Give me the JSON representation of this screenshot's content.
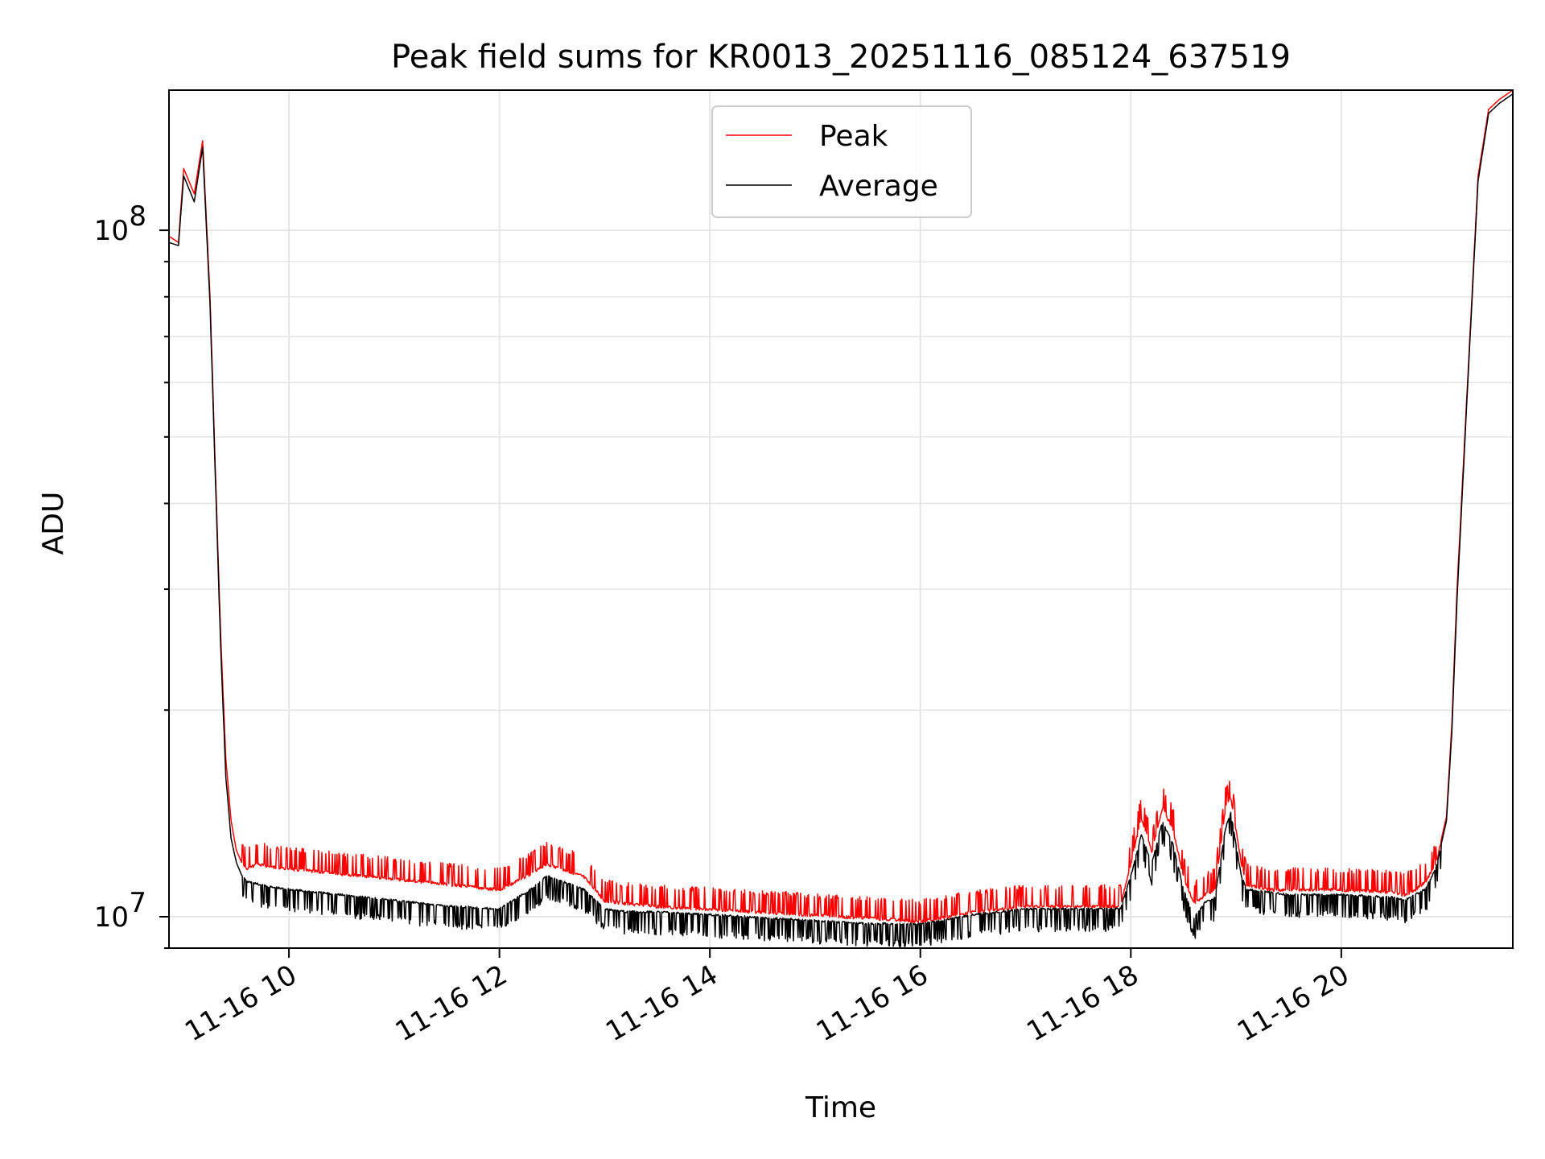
{
  "chart_data": {
    "type": "line",
    "title": "Peak field sums for KR0013_20251116_085124_637519",
    "xlabel": "Time",
    "ylabel": "ADU",
    "yscale": "log",
    "ylim": [
      9000000.0,
      160000000.0
    ],
    "xlim_hours": [
      8.86,
      21.63
    ],
    "grid": true,
    "legend_position": "top-center",
    "x_tick_hours": [
      10,
      12,
      14,
      16,
      18,
      20
    ],
    "x_tick_labels": [
      "11-16 10",
      "11-16 12",
      "11-16 14",
      "11-16 16",
      "11-16 18",
      "11-16 20"
    ],
    "y_major_ticks": [
      {
        "value": 10000000.0,
        "base": "10",
        "exp": "7"
      },
      {
        "value": 100000000.0,
        "base": "10",
        "exp": "8"
      }
    ],
    "series": [
      {
        "name": "Peak",
        "color": "#ff0000",
        "x_hours": [
          8.86,
          8.95,
          9.0,
          9.1,
          9.18,
          9.25,
          9.3,
          9.35,
          9.4,
          9.45,
          9.5,
          9.55,
          9.6,
          9.7,
          9.8,
          10.0,
          10.5,
          11.0,
          11.5,
          12.0,
          12.3,
          12.45,
          12.8,
          13.0,
          13.2,
          13.5,
          14.0,
          14.5,
          15.0,
          15.5,
          16.0,
          16.2,
          16.5,
          17.0,
          17.5,
          17.9,
          18.0,
          18.1,
          18.2,
          18.3,
          18.4,
          18.5,
          18.6,
          18.7,
          18.8,
          18.9,
          18.95,
          19.05,
          19.1,
          19.3,
          19.5,
          20.0,
          20.5,
          20.6,
          20.7,
          20.8,
          20.9,
          21.0,
          21.05,
          21.1,
          21.2,
          21.3,
          21.4,
          21.5,
          21.63
        ],
        "y_adu": [
          98000000.0,
          96000000.0,
          123000000.0,
          113000000.0,
          135000000.0,
          80000000.0,
          45000000.0,
          26000000.0,
          17000000.0,
          13800000.0,
          12500000.0,
          12000000.0,
          11800000.0,
          12000000.0,
          11900000.0,
          11800000.0,
          11600000.0,
          11400000.0,
          11200000.0,
          11000000.0,
          11600000.0,
          12000000.0,
          11500000.0,
          10600000.0,
          10500000.0,
          10400000.0,
          10300000.0,
          10200000.0,
          10100000.0,
          10000000.0,
          9900000.0,
          10000000.0,
          10200000.0,
          10400000.0,
          10400000.0,
          10400000.0,
          12000000.0,
          14000000.0,
          12500000.0,
          14500000.0,
          13500000.0,
          11500000.0,
          10500000.0,
          10800000.0,
          11000000.0,
          14500000.0,
          15000000.0,
          12000000.0,
          11200000.0,
          11000000.0,
          11000000.0,
          11000000.0,
          10900000.0,
          10800000.0,
          11000000.0,
          11300000.0,
          12000000.0,
          14000000.0,
          19000000.0,
          30000000.0,
          60000000.0,
          120000000.0,
          150000000.0,
          155000000.0,
          160000000.0
        ]
      },
      {
        "name": "Average",
        "color": "#000000",
        "x_hours": [
          8.86,
          8.95,
          9.0,
          9.1,
          9.18,
          9.25,
          9.3,
          9.35,
          9.4,
          9.45,
          9.5,
          9.55,
          9.6,
          9.7,
          9.8,
          10.0,
          10.5,
          11.0,
          11.5,
          12.0,
          12.3,
          12.45,
          12.8,
          13.0,
          13.2,
          13.5,
          14.0,
          14.5,
          15.0,
          15.5,
          16.0,
          16.2,
          16.5,
          17.0,
          17.5,
          17.9,
          18.0,
          18.1,
          18.2,
          18.3,
          18.4,
          18.5,
          18.6,
          18.7,
          18.8,
          18.9,
          18.95,
          19.05,
          19.1,
          19.3,
          19.5,
          20.0,
          20.5,
          20.6,
          20.7,
          20.8,
          20.9,
          21.0,
          21.05,
          21.1,
          21.2,
          21.3,
          21.4,
          21.5,
          21.63
        ],
        "y_adu": [
          96000000.0,
          95000000.0,
          120000000.0,
          110000000.0,
          132000000.0,
          78000000.0,
          44000000.0,
          25000000.0,
          16000000.0,
          13000000.0,
          12000000.0,
          11500000.0,
          11300000.0,
          11200000.0,
          11100000.0,
          11000000.0,
          10800000.0,
          10600000.0,
          10400000.0,
          10300000.0,
          11000000.0,
          11500000.0,
          11000000.0,
          10300000.0,
          10200000.0,
          10200000.0,
          10100000.0,
          10000000.0,
          9900000.0,
          9800000.0,
          9800000.0,
          9900000.0,
          10100000.0,
          10300000.0,
          10300000.0,
          10300000.0,
          11500000.0,
          13200000.0,
          12000000.0,
          13800000.0,
          12800000.0,
          11000000.0,
          10000000.0,
          10500000.0,
          10700000.0,
          13500000.0,
          14200000.0,
          11500000.0,
          11000000.0,
          10900000.0,
          10800000.0,
          10800000.0,
          10700000.0,
          10600000.0,
          10800000.0,
          11000000.0,
          11800000.0,
          13800000.0,
          18500000.0,
          29000000.0,
          59000000.0,
          118000000.0,
          148000000.0,
          153000000.0,
          158000000.0
        ]
      }
    ]
  }
}
